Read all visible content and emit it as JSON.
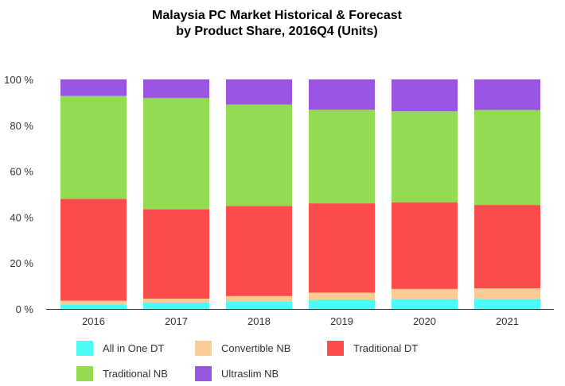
{
  "chart_data": {
    "type": "bar",
    "stacked": true,
    "title": "Malaysia PC Market Historical & Forecast\nby Product Share, 2016Q4 (Units)",
    "categories": [
      "2016",
      "2017",
      "2018",
      "2019",
      "2020",
      "2021"
    ],
    "y_ticks": [
      "0 %",
      "20 %",
      "40 %",
      "60 %",
      "80 %",
      "100 %"
    ],
    "ylim": [
      0,
      100
    ],
    "grid": false,
    "legend_position": "bottom",
    "series": [
      {
        "name": "All in One DT",
        "color": "#4dfcf9",
        "values": [
          2.0,
          2.8,
          3.3,
          3.8,
          4.3,
          4.3
        ]
      },
      {
        "name": "Convertible NB",
        "color": "#fccb95",
        "values": [
          1.6,
          1.7,
          2.3,
          3.3,
          4.4,
          4.7
        ]
      },
      {
        "name": "Traditional DT",
        "color": "#fd4c4c",
        "values": [
          44.4,
          39.0,
          39.3,
          38.9,
          37.8,
          36.3
        ]
      },
      {
        "name": "Traditional NB",
        "color": "#93dc51",
        "values": [
          44.8,
          48.4,
          44.2,
          40.8,
          39.6,
          41.4
        ]
      },
      {
        "name": "Ultraslim NB",
        "color": "#9955e1",
        "values": [
          7.2,
          8.1,
          10.9,
          13.2,
          13.9,
          13.3
        ]
      }
    ]
  }
}
